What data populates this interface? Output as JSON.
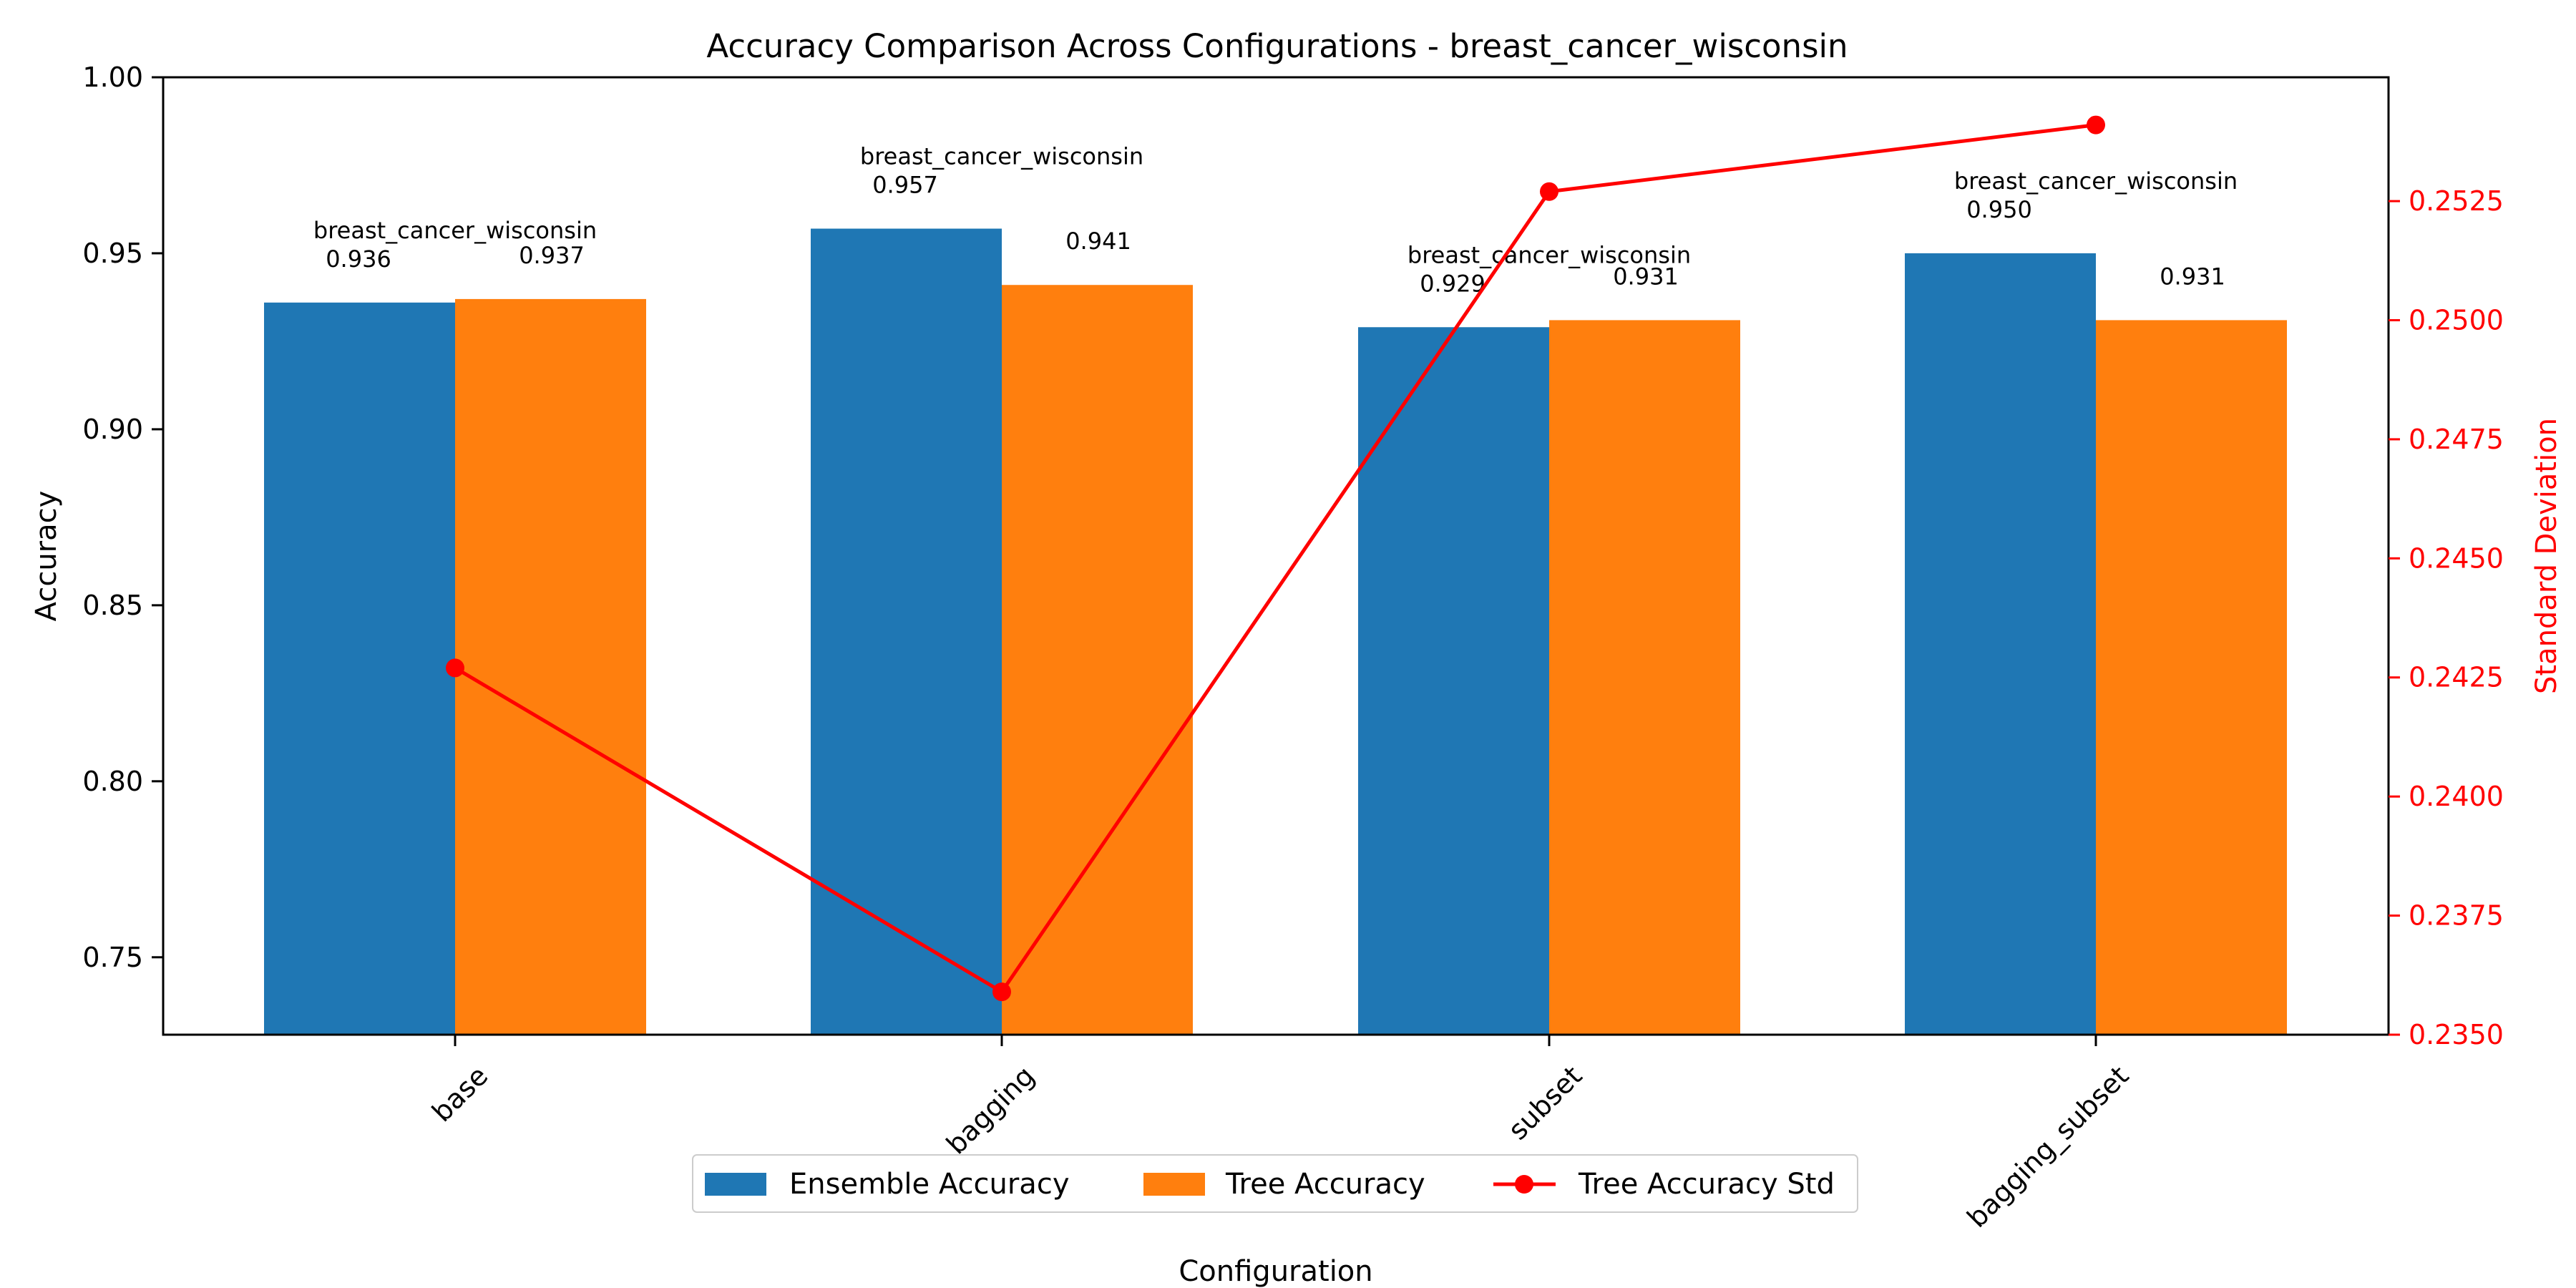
{
  "chart_data": {
    "type": "bar",
    "title": "Accuracy Comparison Across Configurations - breast_cancer_wisconsin",
    "xlabel": "Configuration",
    "ylabel": "Accuracy",
    "y2label": "Standard Deviation",
    "categories": [
      "base",
      "bagging",
      "subset",
      "bagging_subset"
    ],
    "ylim": [
      0.728,
      1.0
    ],
    "yticks": [
      "0.75",
      "0.80",
      "0.85",
      "0.90",
      "0.95",
      "1.00"
    ],
    "y2lim": [
      0.235,
      0.2551
    ],
    "y2ticks": [
      "0.2350",
      "0.2375",
      "0.2400",
      "0.2425",
      "0.2450",
      "0.2475",
      "0.2500",
      "0.2525"
    ],
    "dataset_label": "breast_cancer_wisconsin",
    "series": [
      {
        "name": "Ensemble Accuracy",
        "color": "#1f77b4",
        "values": [
          0.936,
          0.957,
          0.929,
          0.95
        ],
        "labels": [
          "0.936",
          "0.957",
          "0.929",
          "0.950"
        ]
      },
      {
        "name": "Tree Accuracy",
        "color": "#ff7f0e",
        "values": [
          0.937,
          0.941,
          0.931,
          0.931
        ],
        "labels": [
          "0.937",
          "0.941",
          "0.931",
          "0.931"
        ]
      }
    ],
    "line_series": {
      "name": "Tree Accuracy Std",
      "color": "#ff0000",
      "values": [
        0.2427,
        0.2359,
        0.2527,
        0.2541
      ]
    },
    "legend_position": "bottom-center",
    "grid": false
  }
}
